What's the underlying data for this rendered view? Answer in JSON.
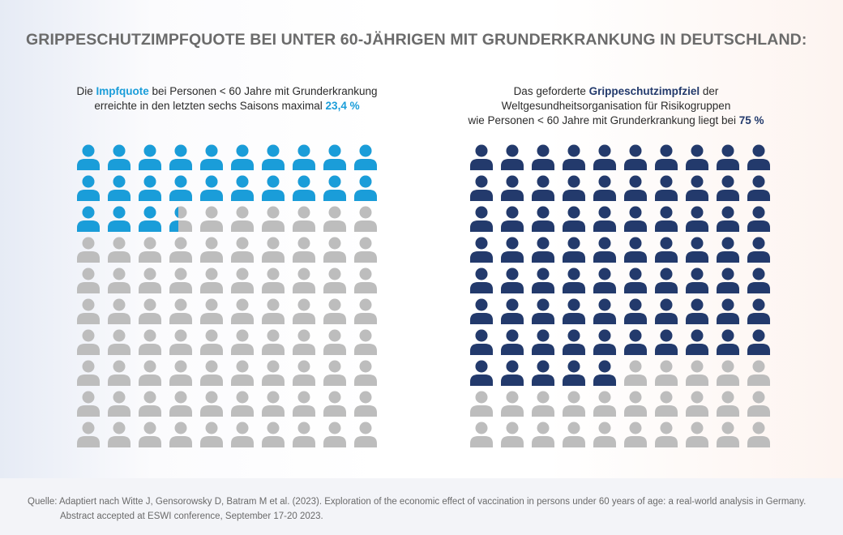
{
  "title": "GRIPPESCHUTZIMPFQUOTE BEI UNTER 60-JÄHRIGEN MIT GRUNDERKRANKUNG IN DEUTSCHLAND:",
  "left": {
    "pre": "Die ",
    "highlight": "Impfquote",
    "mid": " bei Personen < 60 Jahre mit Grunderkrankung",
    "line2": "erreichte in den letzten sechs Saisons maximal ",
    "value_label": "23,4 %"
  },
  "right": {
    "pre": "Das geforderte ",
    "highlight": "Grippeschutzimpfziel",
    "mid": " der",
    "line2": "Weltgesundheitsorganisation für Risikogruppen",
    "line3": "wie Personen < 60 Jahre mit Grunderkrankung liegt bei ",
    "value_label": "75 %"
  },
  "chart_data": [
    {
      "type": "pictogram",
      "name": "Impfquote",
      "value": 23.4,
      "total": 100,
      "unit": "%",
      "rows": 10,
      "cols": 10,
      "fill_color": "#1a9dd9",
      "empty_color": "#bdbdbd"
    },
    {
      "type": "pictogram",
      "name": "Grippeschutzimpfziel",
      "value": 75,
      "total": 100,
      "unit": "%",
      "rows": 10,
      "cols": 10,
      "fill_color": "#233a6c",
      "empty_color": "#bdbdbd"
    }
  ],
  "source": {
    "line1": "Quelle: Adaptiert nach Witte J, Gensorowsky D, Batram M et al. (2023). Exploration of the economic effect of vaccination in persons under 60 years of age: a real-world analysis in Germany.",
    "line2": "Abstract accepted at ESWI conference, September 17-20 2023."
  }
}
